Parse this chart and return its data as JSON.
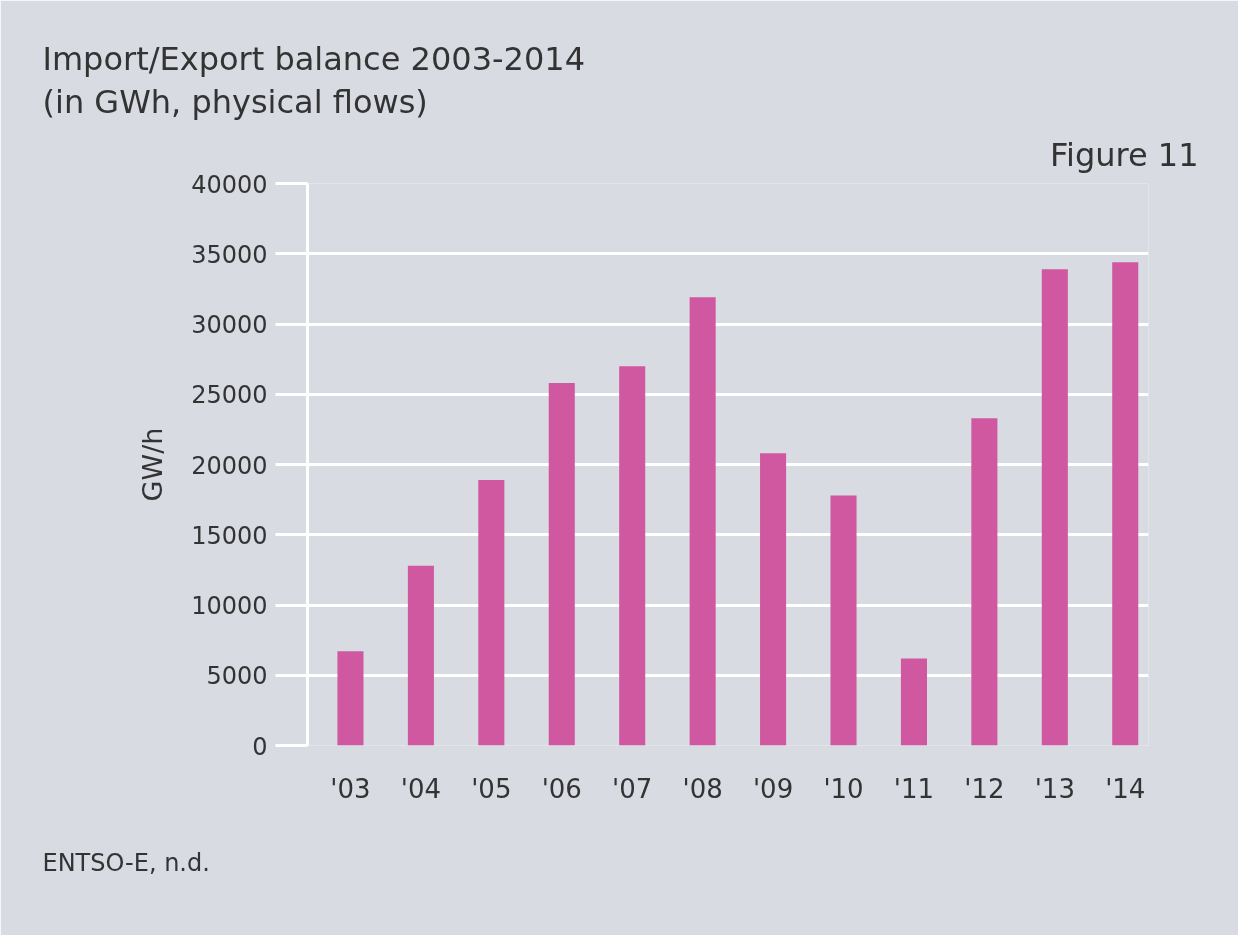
{
  "chart_data": {
    "type": "bar",
    "title": "Import/Export balance 2003-2014",
    "subtitle": "(in GWh, physical flows)",
    "annotations": [
      "Figure 11",
      "ENTSO-E, n.d."
    ],
    "ylabel": "GW/h",
    "categories": [
      "'03",
      "'04",
      "'05",
      "'06",
      "'07",
      "'08",
      "'09",
      "'10",
      "'11",
      "'12",
      "'13",
      "'14"
    ],
    "values": [
      6700,
      12800,
      18900,
      25800,
      27000,
      31900,
      20800,
      17800,
      6200,
      23300,
      33900,
      34400
    ],
    "color": "#d058a0",
    "ylim": [
      0,
      40000
    ],
    "yticks": [
      0,
      5000,
      10000,
      15000,
      20000,
      25000,
      30000,
      35000,
      40000
    ],
    "grid": "y"
  }
}
